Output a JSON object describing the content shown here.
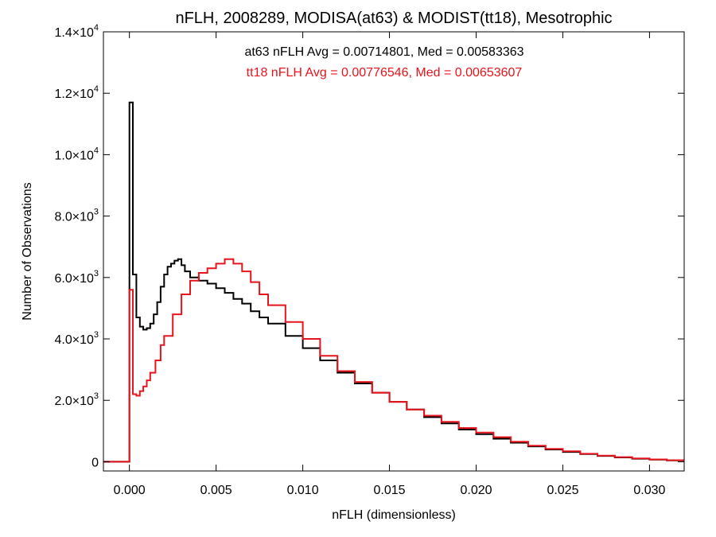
{
  "chart_data": {
    "type": "line",
    "title": "nFLH, 2008289, MODISA(at63) & MODIST(tt18), Mesotrophic",
    "xlabel": "nFLH (dimensionless)",
    "ylabel": "Number of Observations",
    "xlim": [
      -0.0015,
      0.032
    ],
    "ylim": [
      -300,
      14000
    ],
    "x_ticks": [
      {
        "value": 0.0,
        "label": "0.000"
      },
      {
        "value": 0.005,
        "label": "0.005"
      },
      {
        "value": 0.01,
        "label": "0.010"
      },
      {
        "value": 0.015,
        "label": "0.015"
      },
      {
        "value": 0.02,
        "label": "0.020"
      },
      {
        "value": 0.025,
        "label": "0.025"
      },
      {
        "value": 0.03,
        "label": "0.030"
      }
    ],
    "y_ticks": [
      {
        "value": 0,
        "mantissa": "0",
        "exponent": ""
      },
      {
        "value": 2000,
        "mantissa": "2.0×10",
        "exponent": "3"
      },
      {
        "value": 4000,
        "mantissa": "4.0×10",
        "exponent": "3"
      },
      {
        "value": 6000,
        "mantissa": "6.0×10",
        "exponent": "3"
      },
      {
        "value": 8000,
        "mantissa": "8.0×10",
        "exponent": "3"
      },
      {
        "value": 10000,
        "mantissa": "1.0×10",
        "exponent": "4"
      },
      {
        "value": 12000,
        "mantissa": "1.2×10",
        "exponent": "4"
      },
      {
        "value": 14000,
        "mantissa": "1.4×10",
        "exponent": "4"
      }
    ],
    "annotations": [
      {
        "text": "at63 nFLH Avg = 0.00714801, Med = 0.00583363",
        "color": "#000000"
      },
      {
        "text": "tt18 nFLH Avg = 0.00776546, Med = 0.00653607",
        "color": "#e8141c"
      }
    ],
    "series": [
      {
        "color": "#000000",
        "x": [
          -0.0015,
          -0.0001,
          0.0,
          0.0002,
          0.0004,
          0.0006,
          0.0008,
          0.001,
          0.0012,
          0.0014,
          0.0016,
          0.0018,
          0.002,
          0.0022,
          0.0024,
          0.0026,
          0.0028,
          0.003,
          0.0032,
          0.0035,
          0.004,
          0.0045,
          0.005,
          0.0055,
          0.006,
          0.0065,
          0.007,
          0.0075,
          0.008,
          0.009,
          0.01,
          0.011,
          0.012,
          0.013,
          0.014,
          0.015,
          0.016,
          0.017,
          0.018,
          0.019,
          0.02,
          0.021,
          0.022,
          0.023,
          0.024,
          0.025,
          0.026,
          0.027,
          0.028,
          0.029,
          0.03,
          0.031,
          0.032
        ],
        "y": [
          0,
          0,
          11700,
          6100,
          4700,
          4400,
          4300,
          4350,
          4500,
          4800,
          5200,
          5700,
          6100,
          6350,
          6450,
          6550,
          6600,
          6400,
          6200,
          6000,
          5900,
          5800,
          5650,
          5500,
          5300,
          5150,
          4900,
          4700,
          4500,
          4100,
          3700,
          3300,
          2900,
          2550,
          2250,
          1950,
          1700,
          1450,
          1250,
          1050,
          900,
          750,
          620,
          500,
          400,
          320,
          250,
          190,
          140,
          100,
          70,
          45,
          25
        ]
      },
      {
        "color": "#e8141c",
        "x": [
          -0.0015,
          -0.0001,
          0.0,
          0.0002,
          0.0004,
          0.0006,
          0.0008,
          0.001,
          0.0012,
          0.0015,
          0.0018,
          0.002,
          0.0025,
          0.003,
          0.0035,
          0.004,
          0.0045,
          0.005,
          0.0055,
          0.006,
          0.0065,
          0.007,
          0.0075,
          0.008,
          0.009,
          0.01,
          0.011,
          0.012,
          0.013,
          0.014,
          0.015,
          0.016,
          0.017,
          0.018,
          0.019,
          0.02,
          0.021,
          0.022,
          0.023,
          0.024,
          0.025,
          0.026,
          0.027,
          0.028,
          0.029,
          0.03,
          0.031,
          0.032
        ],
        "y": [
          0,
          0,
          5600,
          2200,
          2150,
          2300,
          2450,
          2650,
          2900,
          3300,
          3800,
          4100,
          4800,
          5450,
          5900,
          6150,
          6300,
          6450,
          6600,
          6450,
          6200,
          5850,
          5450,
          5100,
          4550,
          4000,
          3450,
          2950,
          2600,
          2250,
          1950,
          1700,
          1500,
          1300,
          1100,
          950,
          800,
          650,
          520,
          420,
          340,
          260,
          200,
          150,
          110,
          75,
          50,
          30
        ]
      }
    ]
  }
}
